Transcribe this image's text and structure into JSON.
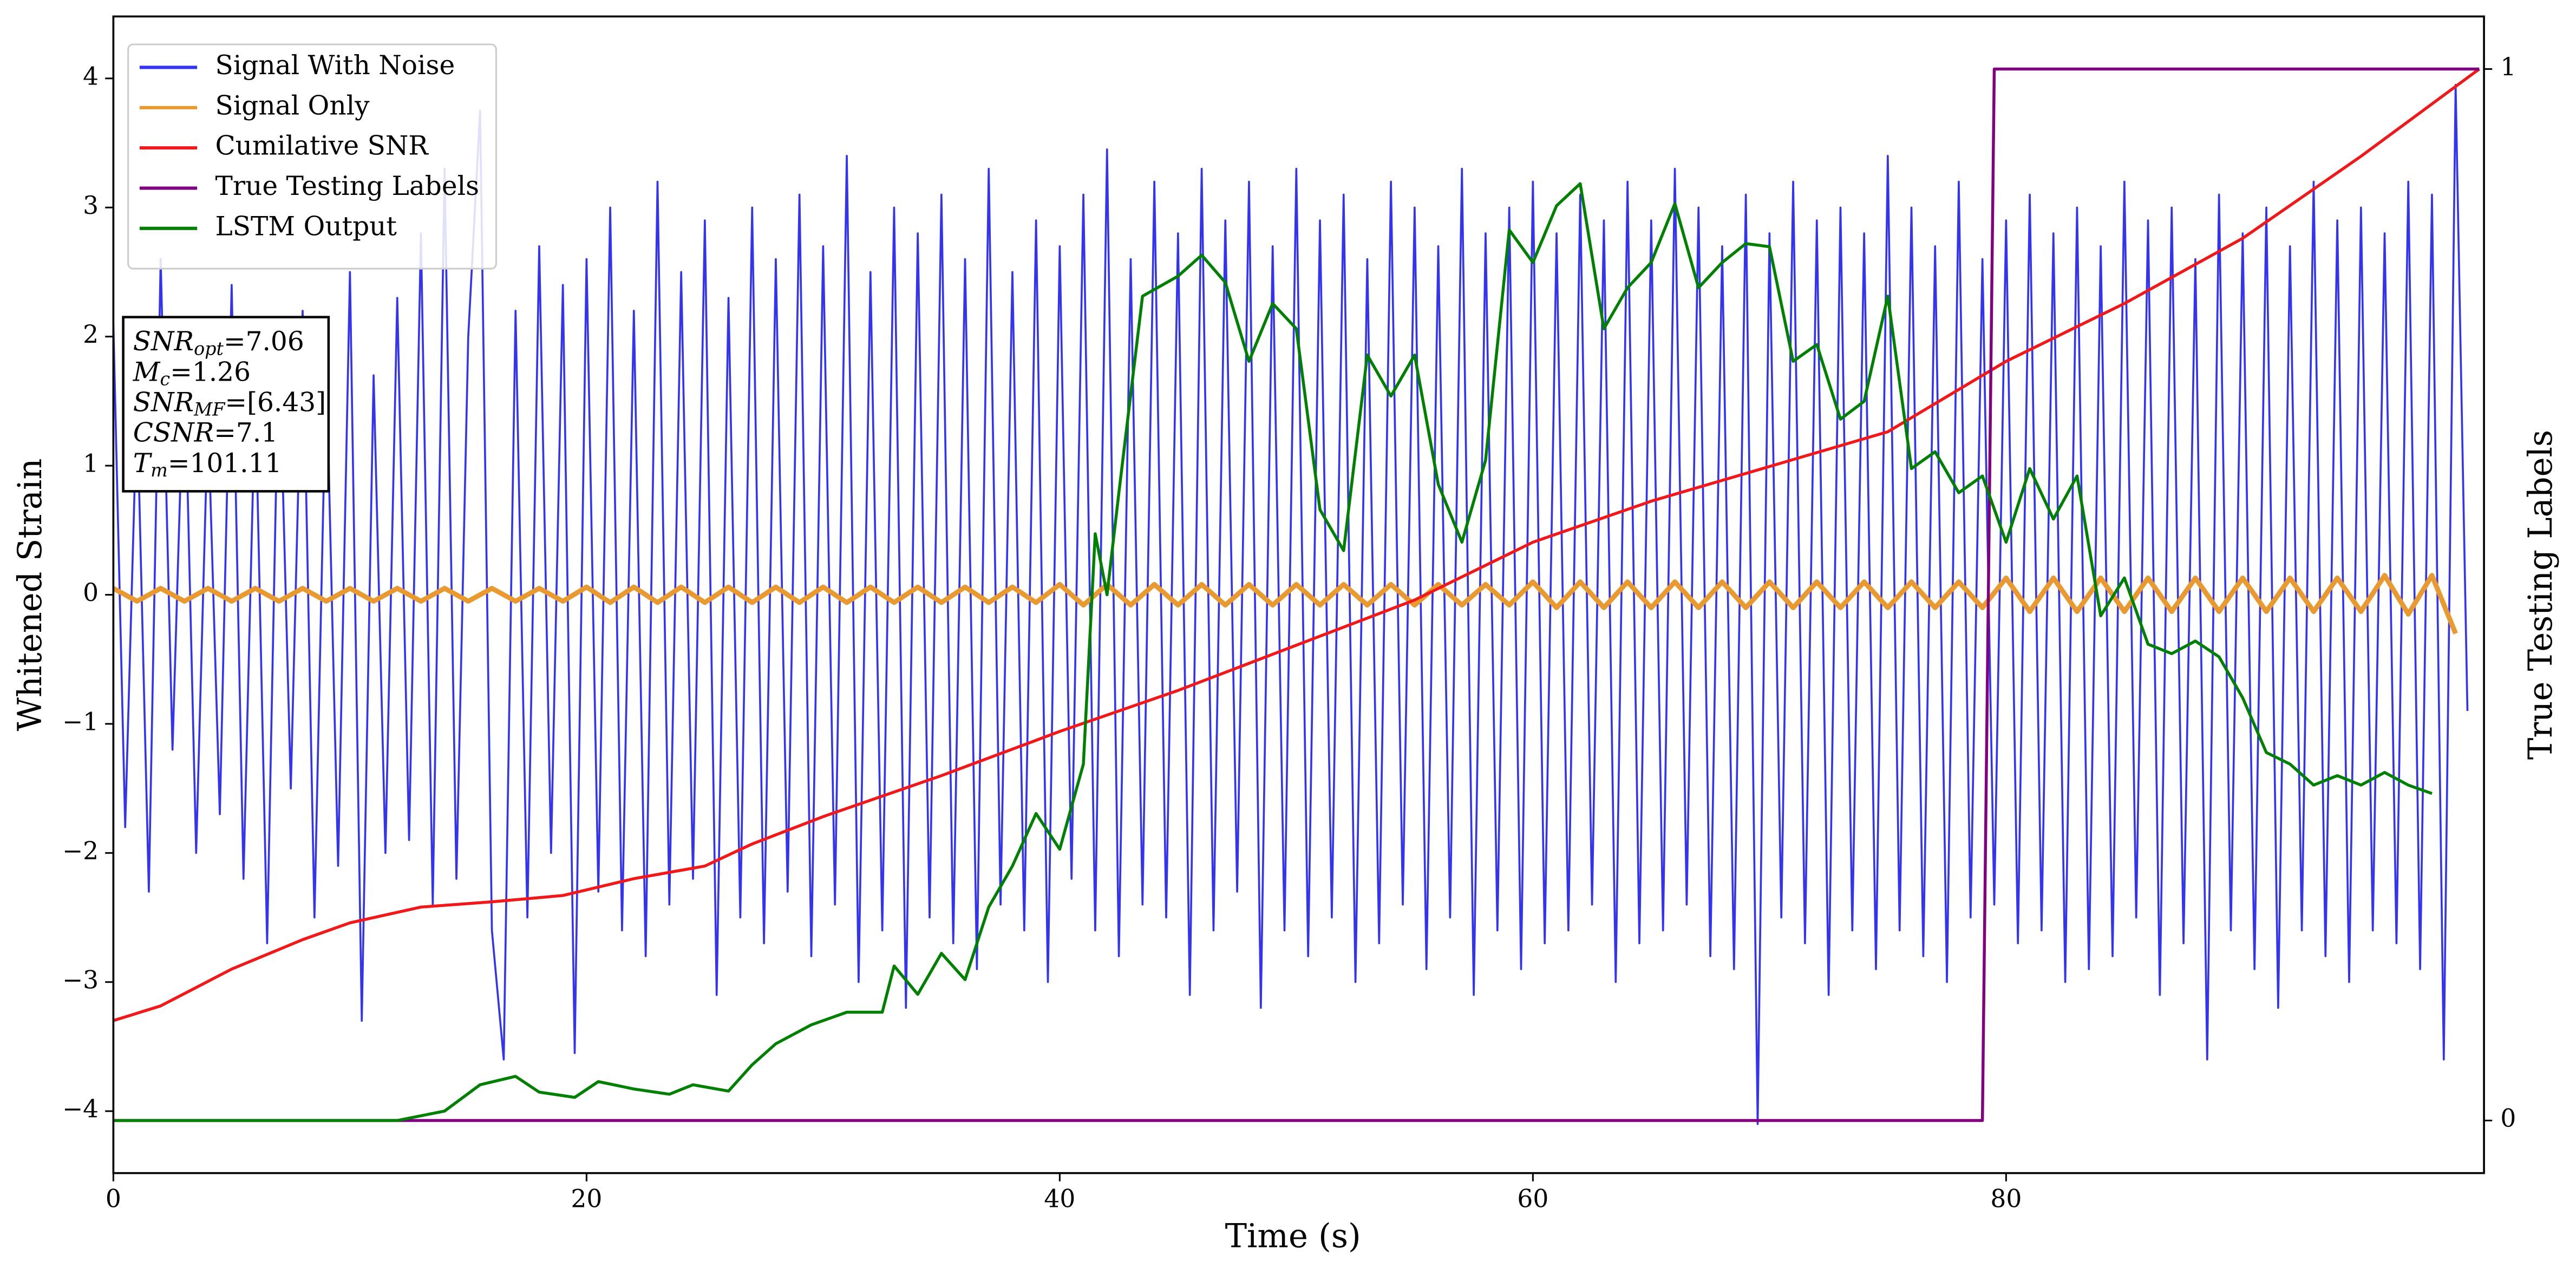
{
  "chart_data": {
    "type": "line",
    "xlabel": "Time (s)",
    "ylabel": "Whitened Strain",
    "y2label": "True Testing Labels",
    "xlim": [
      0,
      100.2
    ],
    "ylim": [
      -4.48,
      4.48
    ],
    "y2lim": [
      -0.05,
      1.05
    ],
    "xticks": [
      0,
      20,
      40,
      60,
      80
    ],
    "yticks": [
      {
        "value": -4,
        "label": "−4"
      },
      {
        "value": -3,
        "label": "−3"
      },
      {
        "value": -2,
        "label": "−2"
      },
      {
        "value": -1,
        "label": "−1"
      },
      0,
      1,
      2,
      3,
      4
    ],
    "y2ticks": [
      0,
      1
    ],
    "legend": "upper left",
    "series": [
      {
        "name": "Signal With Noise",
        "color": "#3333f2",
        "x": [
          0,
          0.5,
          1,
          1.5,
          2,
          2.5,
          3,
          3.5,
          4,
          4.5,
          5,
          5.5,
          6,
          6.5,
          7,
          7.5,
          8,
          8.5,
          9,
          9.5,
          10,
          10.5,
          11,
          11.5,
          12,
          12.5,
          13,
          13.5,
          14,
          14.5,
          15,
          15.5,
          16,
          16.5,
          17,
          17.5,
          18,
          18.5,
          19,
          19.5,
          20,
          20.5,
          21,
          21.5,
          22,
          22.5,
          23,
          23.5,
          24,
          24.5,
          25,
          25.5,
          26,
          26.5,
          27,
          27.5,
          28,
          28.5,
          29,
          29.5,
          30,
          30.5,
          31,
          31.5,
          32,
          32.5,
          33,
          33.5,
          34,
          34.5,
          35,
          35.5,
          36,
          36.5,
          37,
          37.5,
          38,
          38.5,
          39,
          39.5,
          40,
          40.5,
          41,
          41.5,
          42,
          42.5,
          43,
          43.5,
          44,
          44.5,
          45,
          45.5,
          46,
          46.5,
          47,
          47.5,
          48,
          48.5,
          49,
          49.5,
          50,
          50.5,
          51,
          51.5,
          52,
          52.5,
          53,
          53.5,
          54,
          54.5,
          55,
          55.5,
          56,
          56.5,
          57,
          57.5,
          58,
          58.5,
          59,
          59.5,
          60,
          60.5,
          61,
          61.5,
          62,
          62.5,
          63,
          63.5,
          64,
          64.5,
          65,
          65.5,
          66,
          66.5,
          67,
          67.5,
          68,
          68.5,
          69,
          69.5,
          70,
          70.5,
          71,
          71.5,
          72,
          72.5,
          73,
          73.5,
          74,
          74.5,
          75,
          75.5,
          76,
          76.5,
          77,
          77.5,
          78,
          78.5,
          79,
          79.5,
          80,
          80.5,
          81,
          81.5,
          82,
          82.5,
          83,
          83.5,
          84,
          84.5,
          85,
          85.5,
          86,
          86.5,
          87,
          87.5,
          88,
          88.5,
          89,
          89.5,
          90,
          90.5,
          91,
          91.5,
          92,
          92.5,
          93,
          93.5,
          94,
          94.5,
          95,
          95.5,
          96,
          96.5,
          97,
          97.5,
          98,
          98.5,
          99,
          99.5
        ],
        "values": [
          2.1,
          -1.8,
          1.5,
          -2.3,
          2.6,
          -1.2,
          1.9,
          -2.0,
          1.4,
          -1.7,
          2.4,
          -2.2,
          1.6,
          -2.7,
          2.0,
          -1.5,
          2.2,
          -2.5,
          1.8,
          -2.1,
          2.5,
          -3.3,
          1.7,
          -2.0,
          2.3,
          -1.9,
          2.8,
          -2.4,
          3.3,
          -2.2,
          2.0,
          3.75,
          -2.6,
          -3.6,
          2.2,
          -2.5,
          2.7,
          -2.0,
          2.4,
          -3.55,
          2.6,
          -2.3,
          3.0,
          -2.6,
          2.2,
          -2.8,
          3.2,
          -2.4,
          2.5,
          -2.2,
          2.9,
          -3.1,
          2.3,
          -2.5,
          3.0,
          -2.7,
          2.6,
          -2.3,
          3.1,
          -2.8,
          2.7,
          -2.4,
          3.4,
          -3.0,
          2.5,
          -2.6,
          3.0,
          -3.2,
          2.8,
          -2.5,
          3.1,
          -2.7,
          2.6,
          -2.9,
          3.3,
          -2.4,
          2.5,
          -2.6,
          2.9,
          -3.0,
          2.7,
          -2.2,
          3.1,
          -2.6,
          3.45,
          -2.8,
          2.6,
          -2.4,
          3.2,
          -2.5,
          2.8,
          -3.1,
          3.3,
          -2.6,
          2.9,
          -2.3,
          3.2,
          -3.2,
          2.7,
          -2.6,
          3.3,
          -2.8,
          2.9,
          -2.5,
          3.1,
          -3.0,
          2.6,
          -2.7,
          3.2,
          -2.4,
          3.0,
          -2.9,
          2.7,
          -2.5,
          3.3,
          -3.1,
          2.8,
          -2.6,
          3.0,
          -2.9,
          3.2,
          -2.7,
          2.8,
          -2.6,
          3.1,
          -2.4,
          2.9,
          -3.0,
          3.2,
          -2.7,
          2.9,
          -2.6,
          3.3,
          -2.4,
          3.0,
          -2.8,
          2.7,
          -2.9,
          3.1,
          -4.1,
          2.8,
          -2.5,
          3.2,
          -2.7,
          2.9,
          -3.1,
          3.0,
          -2.6,
          2.8,
          -2.9,
          3.4,
          -2.6,
          3.0,
          -2.8,
          2.7,
          -3.0,
          3.2,
          -2.5,
          2.6,
          -2.4,
          2.9,
          -2.7,
          3.1,
          -2.6,
          2.8,
          -3.0,
          3.0,
          -2.9,
          2.7,
          -2.8,
          3.2,
          -2.5,
          2.9,
          -3.1,
          3.0,
          -2.7,
          2.6,
          -3.6,
          3.1,
          -2.6,
          2.8,
          -2.9,
          3.0,
          -3.2,
          2.7,
          -2.6,
          3.2,
          -2.8,
          2.9,
          -3.0,
          3.0,
          -2.6,
          2.8,
          -2.7,
          3.2,
          -2.9,
          3.1,
          -3.6,
          3.95,
          -0.9
        ]
      },
      {
        "name": "Signal Only",
        "color": "#e8992f",
        "x": [
          0,
          1,
          2,
          3,
          4,
          5,
          6,
          7,
          8,
          9,
          10,
          11,
          12,
          13,
          14,
          15,
          16,
          17,
          18,
          19,
          20,
          21,
          22,
          23,
          24,
          25,
          26,
          27,
          28,
          29,
          30,
          31,
          32,
          33,
          34,
          35,
          36,
          37,
          38,
          39,
          40,
          41,
          42,
          43,
          44,
          45,
          46,
          47,
          48,
          49,
          50,
          51,
          52,
          53,
          54,
          55,
          56,
          57,
          58,
          59,
          60,
          61,
          62,
          63,
          64,
          65,
          66,
          67,
          68,
          69,
          70,
          71,
          72,
          73,
          74,
          75,
          76,
          77,
          78,
          79,
          80,
          81,
          82,
          83,
          84,
          85,
          86,
          87,
          88,
          89,
          90,
          91,
          92,
          93,
          94,
          95,
          96,
          97,
          98,
          99
        ],
        "values": [
          0.05,
          -0.05,
          0.05,
          -0.05,
          0.05,
          -0.05,
          0.05,
          -0.05,
          0.05,
          -0.05,
          0.05,
          -0.05,
          0.05,
          -0.05,
          0.05,
          -0.05,
          0.05,
          -0.05,
          0.05,
          -0.05,
          0.06,
          -0.06,
          0.06,
          -0.06,
          0.06,
          -0.06,
          0.06,
          -0.06,
          0.06,
          -0.06,
          0.06,
          -0.06,
          0.06,
          -0.06,
          0.06,
          -0.06,
          0.06,
          -0.06,
          0.06,
          -0.06,
          0.08,
          -0.08,
          0.08,
          -0.08,
          0.08,
          -0.08,
          0.08,
          -0.08,
          0.08,
          -0.08,
          0.08,
          -0.08,
          0.08,
          -0.08,
          0.08,
          -0.08,
          0.08,
          -0.08,
          0.08,
          -0.08,
          0.1,
          -0.1,
          0.1,
          -0.1,
          0.1,
          -0.1,
          0.1,
          -0.1,
          0.1,
          -0.1,
          0.1,
          -0.1,
          0.1,
          -0.1,
          0.1,
          -0.1,
          0.1,
          -0.1,
          0.1,
          -0.1,
          0.13,
          -0.13,
          0.13,
          -0.13,
          0.13,
          -0.13,
          0.13,
          -0.13,
          0.13,
          -0.13,
          0.13,
          -0.13,
          0.13,
          -0.13,
          0.13,
          -0.13,
          0.15,
          -0.15,
          0.15,
          -0.3
        ]
      },
      {
        "name": "Cumilative SNR",
        "color": "#f01818",
        "axis": "y2",
        "x": [
          0,
          2,
          5,
          8,
          10,
          13,
          16,
          19,
          22,
          25,
          27,
          30,
          35,
          40,
          45,
          50,
          55,
          60,
          65,
          70,
          75,
          80,
          85,
          90,
          95,
          100
        ],
        "values": [
          0.095,
          0.109,
          0.144,
          0.172,
          0.188,
          0.203,
          0.208,
          0.214,
          0.23,
          0.242,
          0.263,
          0.289,
          0.328,
          0.37,
          0.409,
          0.452,
          0.495,
          0.55,
          0.589,
          0.622,
          0.655,
          0.722,
          0.777,
          0.839,
          0.917,
          1.0
        ]
      },
      {
        "name": "True Testing Labels",
        "color": "#800080",
        "axis": "y2",
        "x": [
          0,
          79,
          79.5,
          100
        ],
        "values": [
          0,
          0,
          1,
          1
        ]
      },
      {
        "name": "LSTM Output",
        "color": "#008000",
        "axis": "y2",
        "x": [
          0,
          12,
          14,
          15.5,
          17,
          18,
          19.5,
          20.5,
          22,
          23.5,
          24.5,
          26,
          27,
          28,
          29.5,
          31,
          32.5,
          33,
          34,
          35,
          36,
          37,
          38,
          39,
          40,
          41,
          41.5,
          42,
          42.5,
          43.5,
          45,
          46,
          47,
          48,
          49,
          50,
          51,
          52,
          53,
          54,
          55,
          56,
          57,
          58,
          59,
          60,
          61,
          62,
          63,
          64,
          65,
          66,
          67,
          68,
          69,
          70,
          71,
          72,
          73,
          74,
          75,
          76,
          77,
          78,
          79,
          80,
          81,
          82,
          83,
          84,
          85,
          86,
          87,
          88,
          89,
          90,
          91,
          92,
          93,
          94,
          95,
          96,
          97,
          98
        ],
        "values": [
          0,
          0,
          0.009,
          0.034,
          0.042,
          0.027,
          0.022,
          0.037,
          0.03,
          0.025,
          0.034,
          0.028,
          0.053,
          0.073,
          0.091,
          0.103,
          0.103,
          0.147,
          0.12,
          0.159,
          0.134,
          0.203,
          0.242,
          0.292,
          0.258,
          0.339,
          0.558,
          0.5,
          0.597,
          0.784,
          0.803,
          0.823,
          0.797,
          0.722,
          0.777,
          0.753,
          0.581,
          0.542,
          0.728,
          0.689,
          0.728,
          0.605,
          0.55,
          0.628,
          0.847,
          0.816,
          0.87,
          0.891,
          0.753,
          0.792,
          0.816,
          0.872,
          0.792,
          0.816,
          0.834,
          0.831,
          0.722,
          0.738,
          0.667,
          0.684,
          0.784,
          0.62,
          0.636,
          0.597,
          0.613,
          0.55,
          0.62,
          0.572,
          0.613,
          0.48,
          0.516,
          0.453,
          0.444,
          0.456,
          0.441,
          0.402,
          0.35,
          0.339,
          0.319,
          0.328,
          0.319,
          0.331,
          0.319,
          0.311
        ]
      }
    ],
    "annotations": [
      {
        "base": "SNR",
        "sub": "opt",
        "rest": "=7.06"
      },
      {
        "base": "M",
        "sub": "c",
        "rest": "=1.26"
      },
      {
        "base": "SNR",
        "sub": "MF",
        "rest": "=[6.43]"
      },
      {
        "base": "CSNR",
        "sub": null,
        "rest": "=7.1"
      },
      {
        "base": "T",
        "sub": "m",
        "rest": "=101.11"
      }
    ]
  }
}
